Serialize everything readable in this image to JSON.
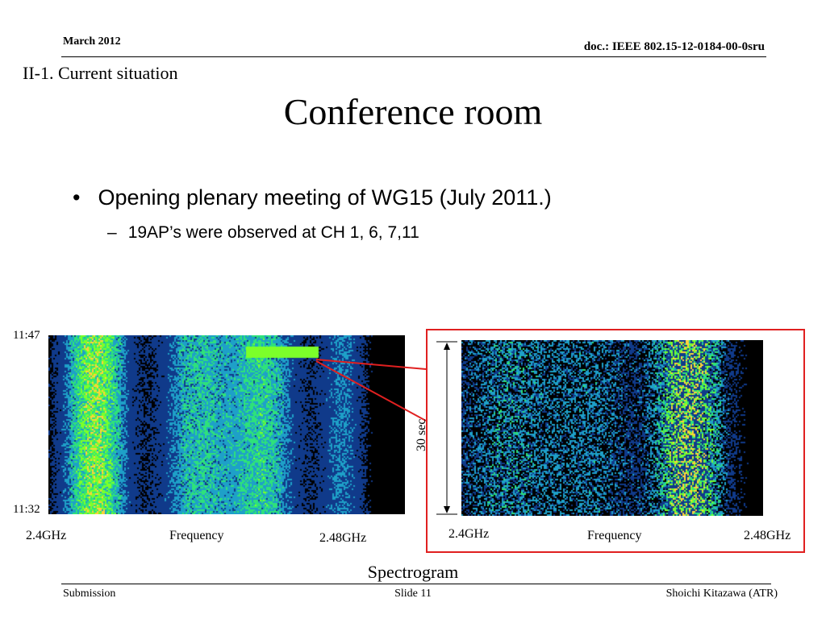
{
  "header": {
    "date": "March 2012",
    "doc_id": "doc.: IEEE 802.15-12-0184-00-0sru"
  },
  "section_title": "II-1. Current situation",
  "title": "Conference room",
  "bullets": [
    {
      "marker": "•",
      "text": "Opening plenary meeting of  WG15 (July 2011.)",
      "sub": [
        {
          "marker": "–",
          "text": "19AP’s were observed at CH 1, 6, 7,11"
        }
      ]
    }
  ],
  "figure": {
    "left_panel": {
      "time_top": "11:47",
      "time_bottom": "11:32",
      "freq_start": "2.4GHz",
      "freq_mid": "Frequency",
      "freq_end": "2.48GHz"
    },
    "right_panel": {
      "duration": "30 sec",
      "freq_start": "2.4GHz",
      "freq_mid": "Frequency",
      "freq_end": "2.48GHz"
    },
    "caption": "Spectrogram",
    "colors": {
      "highlight_box": "#e02020",
      "spectrogram_bg": "#000000"
    }
  },
  "footer": {
    "left": "Submission",
    "center": "Slide 11",
    "right": "Shoichi Kitazawa (ATR)"
  }
}
